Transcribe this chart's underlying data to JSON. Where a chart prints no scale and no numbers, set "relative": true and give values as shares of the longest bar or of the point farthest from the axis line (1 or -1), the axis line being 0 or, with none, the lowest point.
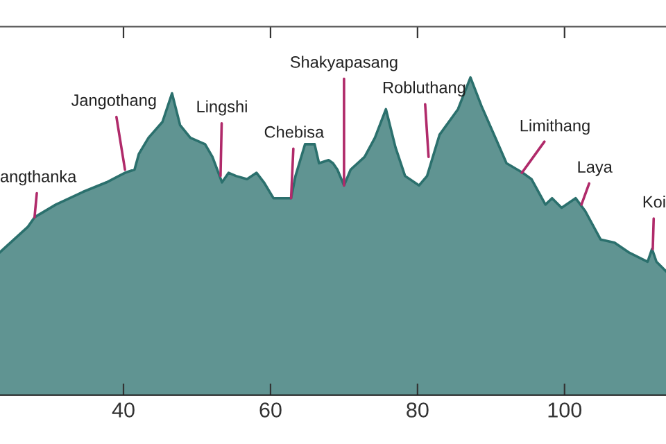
{
  "chart_data": {
    "type": "area",
    "relative": true,
    "tick_labels": "x",
    "grid": false,
    "xlim": [
      23.2,
      113.8
    ],
    "xticks": [
      40,
      60,
      80,
      100
    ],
    "x": [
      23.2,
      27.0,
      27.9,
      30.8,
      34.5,
      37.7,
      40.2,
      41.5,
      42.1,
      43.4,
      45.3,
      46.6,
      47.7,
      49.1,
      51.1,
      52.1,
      53.4,
      54.3,
      55.3,
      56.8,
      58.1,
      59.1,
      60.4,
      61.5,
      62.8,
      63.4,
      64.7,
      66.0,
      66.6,
      67.9,
      68.5,
      69.1,
      70.0,
      70.9,
      72.8,
      74.2,
      75.7,
      77.0,
      78.3,
      80.2,
      81.3,
      83.0,
      85.5,
      87.2,
      88.7,
      90.6,
      92.1,
      94.3,
      95.5,
      97.4,
      98.3,
      99.6,
      101.5,
      102.8,
      104.9,
      106.8,
      108.7,
      111.3,
      111.9,
      112.5,
      113.8
    ],
    "series": [
      {
        "color": "#2b706d",
        "values": [
          0.45,
          0.53,
          0.56,
          0.6,
          0.64,
          0.67,
          0.7,
          0.71,
          0.76,
          0.81,
          0.86,
          0.95,
          0.85,
          0.81,
          0.79,
          0.75,
          0.67,
          0.7,
          0.69,
          0.68,
          0.7,
          0.67,
          0.62,
          0.62,
          0.62,
          0.69,
          0.79,
          0.79,
          0.73,
          0.74,
          0.73,
          0.71,
          0.66,
          0.71,
          0.75,
          0.81,
          0.9,
          0.78,
          0.69,
          0.66,
          0.69,
          0.82,
          0.9,
          1.0,
          0.91,
          0.81,
          0.73,
          0.7,
          0.68,
          0.6,
          0.62,
          0.59,
          0.62,
          0.58,
          0.49,
          0.48,
          0.45,
          0.42,
          0.46,
          0.42,
          0.39
        ]
      }
    ],
    "annotations": [
      {
        "text": "angthanka",
        "x": 27.9,
        "y": 0.56
      },
      {
        "text": "Jangothang",
        "x": 40.2,
        "y": 0.71
      },
      {
        "text": "Lingshi",
        "x": 53.2,
        "y": 0.69
      },
      {
        "text": "Chebisa",
        "x": 62.8,
        "y": 0.62
      },
      {
        "text": "Shakyapasang",
        "x": 70.0,
        "y": 0.66
      },
      {
        "text": "Robluthang",
        "x": 81.5,
        "y": 0.75
      },
      {
        "text": "Limithang",
        "x": 94.2,
        "y": 0.7
      },
      {
        "text": "Laya",
        "x": 102.3,
        "y": 0.6
      },
      {
        "text": "Koi",
        "x": 112.0,
        "y": 0.46
      }
    ]
  }
}
